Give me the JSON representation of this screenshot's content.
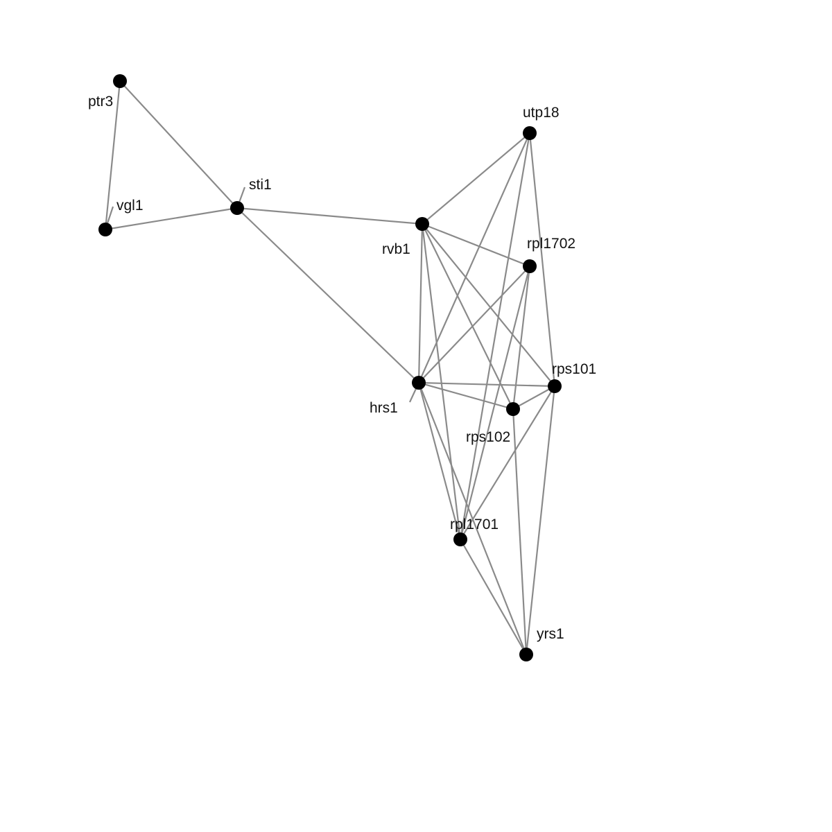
{
  "graph": {
    "nodes": [
      {
        "id": "ptr3",
        "label": "ptr3"
      },
      {
        "id": "vgl1",
        "label": "vgl1"
      },
      {
        "id": "sti1",
        "label": "sti1"
      },
      {
        "id": "rvb1",
        "label": "rvb1"
      },
      {
        "id": "utp18",
        "label": "utp18"
      },
      {
        "id": "rpl1702",
        "label": "rpl1702"
      },
      {
        "id": "hrs1",
        "label": "hrs1"
      },
      {
        "id": "rps101",
        "label": "rps101"
      },
      {
        "id": "rps102",
        "label": "rps102"
      },
      {
        "id": "rpl1701",
        "label": "rpl1701"
      },
      {
        "id": "yrs1",
        "label": "yrs1"
      }
    ],
    "edges": [
      [
        "ptr3",
        "vgl1"
      ],
      [
        "ptr3",
        "sti1"
      ],
      [
        "vgl1",
        "sti1"
      ],
      [
        "sti1",
        "rvb1"
      ],
      [
        "sti1",
        "hrs1"
      ],
      [
        "rvb1",
        "utp18"
      ],
      [
        "rvb1",
        "rpl1702"
      ],
      [
        "rvb1",
        "hrs1"
      ],
      [
        "rvb1",
        "rps101"
      ],
      [
        "rvb1",
        "rps102"
      ],
      [
        "rvb1",
        "rpl1701"
      ],
      [
        "utp18",
        "hrs1"
      ],
      [
        "utp18",
        "rps101"
      ],
      [
        "utp18",
        "rpl1701"
      ],
      [
        "rpl1702",
        "hrs1"
      ],
      [
        "rpl1702",
        "rps102"
      ],
      [
        "rpl1702",
        "rpl1701"
      ],
      [
        "hrs1",
        "rps101"
      ],
      [
        "hrs1",
        "rps102"
      ],
      [
        "hrs1",
        "rpl1701"
      ],
      [
        "hrs1",
        "yrs1"
      ],
      [
        "rps102",
        "rps101"
      ],
      [
        "rps102",
        "yrs1"
      ],
      [
        "rps101",
        "rpl1701"
      ],
      [
        "rps101",
        "yrs1"
      ],
      [
        "rpl1701",
        "yrs1"
      ]
    ],
    "colors": {
      "edge": "#8a8a8a",
      "node": "#000000",
      "label": "#111111"
    }
  }
}
